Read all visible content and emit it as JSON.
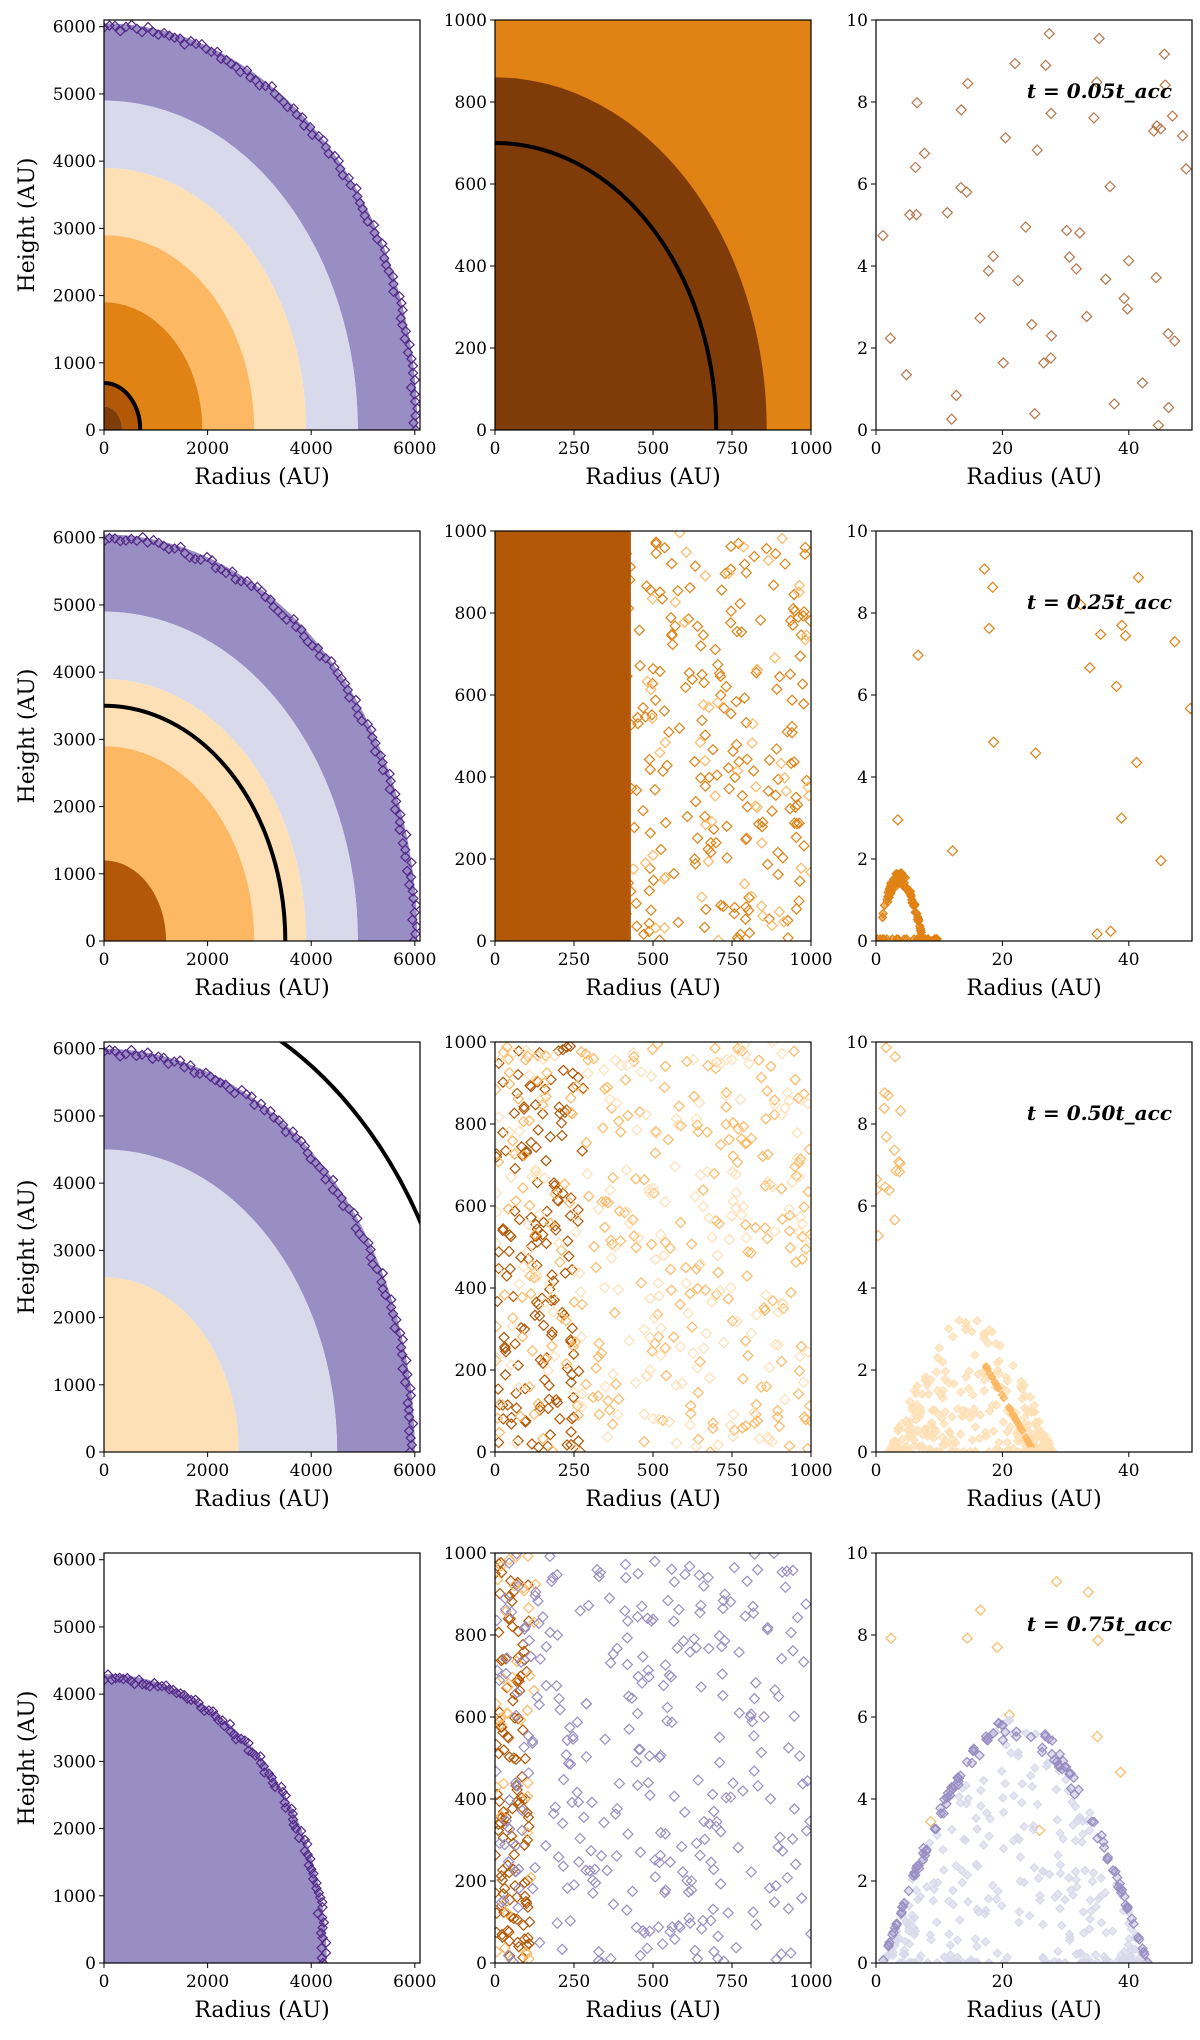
{
  "figure": {
    "row_annotations": [
      "t = 0.05t_acc",
      "t = 0.25t_acc",
      "t = 0.50t_acc",
      "t = 0.75t_acc"
    ],
    "colors": {
      "dark_brown": "#7f3b08",
      "brown": "#b35806",
      "orange": "#e08214",
      "light_orange": "#fdb863",
      "cream": "#fee0b6",
      "lavender": "#d8daeb",
      "lilac": "#b2abd2",
      "purple": "#998ec3",
      "dark_purple": "#542788",
      "curve": "#000000"
    }
  },
  "chart_data": [
    {
      "type": "scatter",
      "panel": "r0c0",
      "xlabel": "Radius (AU)",
      "ylabel": "Height (AU)",
      "xlim": [
        0,
        6100
      ],
      "ylim": [
        0,
        6100
      ],
      "xticks": [
        0,
        2000,
        4000,
        6000
      ],
      "yticks": [
        0,
        1000,
        2000,
        3000,
        4000,
        5000,
        6000
      ],
      "bands": [
        [
          0,
          350,
          "dark_brown"
        ],
        [
          350,
          700,
          "brown"
        ],
        [
          700,
          1900,
          "orange"
        ],
        [
          1900,
          2900,
          "light_orange"
        ],
        [
          2900,
          3900,
          "cream"
        ],
        [
          3900,
          4900,
          "lavender"
        ],
        [
          4900,
          6050,
          "purple"
        ]
      ],
      "rim_radius": 6000,
      "curve_radius": 700
    },
    {
      "type": "scatter",
      "panel": "r0c1",
      "xlabel": "Radius (AU)",
      "ylabel": "",
      "xlim": [
        0,
        1000
      ],
      "ylim": [
        0,
        1000
      ],
      "xticks": [
        0,
        250,
        500,
        750,
        1000
      ],
      "yticks": [
        0,
        200,
        400,
        600,
        800,
        1000
      ],
      "curve_radius": 700
    },
    {
      "type": "scatter",
      "panel": "r0c2",
      "xlabel": "Radius (AU)",
      "ylabel": "",
      "xlim": [
        0,
        50
      ],
      "ylim": [
        0,
        10
      ],
      "xticks": [
        0,
        20,
        40
      ],
      "yticks": [
        0,
        2,
        4,
        6,
        8,
        10
      ],
      "annotation_index": 0
    },
    {
      "type": "scatter",
      "panel": "r1c0",
      "xlabel": "Radius (AU)",
      "ylabel": "Height (AU)",
      "xlim": [
        0,
        6100
      ],
      "ylim": [
        0,
        6100
      ],
      "xticks": [
        0,
        2000,
        4000,
        6000
      ],
      "yticks": [
        0,
        1000,
        2000,
        3000,
        4000,
        5000,
        6000
      ],
      "bands": [
        [
          0,
          1200,
          "brown"
        ],
        [
          1200,
          2900,
          "light_orange"
        ],
        [
          2900,
          3900,
          "cream"
        ],
        [
          3900,
          4900,
          "lavender"
        ],
        [
          4900,
          6050,
          "purple"
        ]
      ],
      "rim_radius": 6000,
      "curve_radius": 3500
    },
    {
      "type": "scatter",
      "panel": "r1c1",
      "xlabel": "Radius (AU)",
      "ylabel": "",
      "xlim": [
        0,
        1000
      ],
      "ylim": [
        0,
        1000
      ],
      "xticks": [
        0,
        250,
        500,
        750,
        1000
      ],
      "yticks": [
        0,
        200,
        400,
        600,
        800,
        1000
      ]
    },
    {
      "type": "scatter",
      "panel": "r1c2",
      "xlabel": "Radius (AU)",
      "ylabel": "",
      "xlim": [
        0,
        50
      ],
      "ylim": [
        0,
        10
      ],
      "xticks": [
        0,
        20,
        40
      ],
      "yticks": [
        0,
        2,
        4,
        6,
        8,
        10
      ],
      "annotation_index": 1
    },
    {
      "type": "scatter",
      "panel": "r2c0",
      "xlabel": "Radius (AU)",
      "ylabel": "Height (AU)",
      "xlim": [
        0,
        6100
      ],
      "ylim": [
        0,
        6100
      ],
      "xticks": [
        0,
        2000,
        4000,
        6000
      ],
      "yticks": [
        0,
        1000,
        2000,
        3000,
        4000,
        5000,
        6000
      ],
      "bands": [
        [
          0,
          2600,
          "cream"
        ],
        [
          2600,
          4500,
          "lavender"
        ],
        [
          4500,
          6000,
          "purple"
        ]
      ],
      "rim_radius": 5950,
      "curve_radius": 7000
    },
    {
      "type": "scatter",
      "panel": "r2c1",
      "xlabel": "Radius (AU)",
      "ylabel": "",
      "xlim": [
        0,
        1000
      ],
      "ylim": [
        0,
        1000
      ],
      "xticks": [
        0,
        250,
        500,
        750,
        1000
      ],
      "yticks": [
        0,
        200,
        400,
        600,
        800,
        1000
      ]
    },
    {
      "type": "scatter",
      "panel": "r2c2",
      "xlabel": "Radius (AU)",
      "ylabel": "",
      "xlim": [
        0,
        50
      ],
      "ylim": [
        0,
        10
      ],
      "xticks": [
        0,
        20,
        40
      ],
      "yticks": [
        0,
        2,
        4,
        6,
        8,
        10
      ],
      "annotation_index": 2
    },
    {
      "type": "scatter",
      "panel": "r3c0",
      "xlabel": "Radius (AU)",
      "ylabel": "Height (AU)",
      "xlim": [
        0,
        6100
      ],
      "ylim": [
        0,
        6100
      ],
      "xticks": [
        0,
        2000,
        4000,
        6000
      ],
      "yticks": [
        0,
        1000,
        2000,
        3000,
        4000,
        5000,
        6000
      ],
      "bands": [
        [
          0,
          4300,
          "purple"
        ]
      ],
      "rim_radius": 4250
    },
    {
      "type": "scatter",
      "panel": "r3c1",
      "xlabel": "Radius (AU)",
      "ylabel": "",
      "xlim": [
        0,
        1000
      ],
      "ylim": [
        0,
        1000
      ],
      "xticks": [
        0,
        250,
        500,
        750,
        1000
      ],
      "yticks": [
        0,
        200,
        400,
        600,
        800,
        1000
      ]
    },
    {
      "type": "scatter",
      "panel": "r3c2",
      "xlabel": "Radius (AU)",
      "ylabel": "",
      "xlim": [
        0,
        50
      ],
      "ylim": [
        0,
        10
      ],
      "xticks": [
        0,
        20,
        40
      ],
      "yticks": [
        0,
        2,
        4,
        6,
        8,
        10
      ],
      "annotation_index": 3
    }
  ]
}
